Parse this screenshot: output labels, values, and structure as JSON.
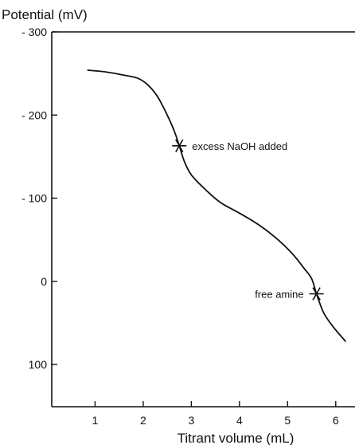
{
  "chart_data": {
    "type": "line",
    "title": "",
    "ylabel": "Potential (mV)",
    "xlabel": "Titrant volume (mL)",
    "xlim": [
      0.1,
      6.4
    ],
    "ylim": [
      -300,
      100
    ],
    "x_ticks": [
      1,
      2,
      3,
      4,
      5,
      6
    ],
    "x_tick_labels": [
      "1",
      "2",
      "3",
      "4",
      "5",
      "6"
    ],
    "y_ticks": [
      -300,
      -200,
      -100,
      0,
      100
    ],
    "y_tick_labels": [
      "- 300",
      "- 200",
      "- 100",
      "0",
      "100"
    ],
    "y_inverted": true,
    "grid": false,
    "series": [
      {
        "color": "#111111",
        "x": [
          0.85,
          1.2,
          1.6,
          1.9,
          2.1,
          2.3,
          2.5,
          2.65,
          2.75,
          2.85,
          3.0,
          3.3,
          3.6,
          4.0,
          4.4,
          4.8,
          5.1,
          5.35,
          5.5,
          5.6,
          5.75,
          5.95,
          6.2
        ],
        "y": [
          -254,
          -252,
          -248,
          -244,
          -236,
          -222,
          -200,
          -180,
          -163,
          -145,
          -128,
          -110,
          -95,
          -82,
          -68,
          -50,
          -33,
          -15,
          -3,
          15,
          38,
          55,
          72
        ]
      }
    ],
    "annotations": [
      {
        "text": "excess NaOH added",
        "x": 2.75,
        "y": -163,
        "marker": "asterisk",
        "label_side": "right"
      },
      {
        "text": "free amine",
        "x": 5.6,
        "y": 15,
        "marker": "asterisk",
        "label_side": "left"
      }
    ]
  }
}
